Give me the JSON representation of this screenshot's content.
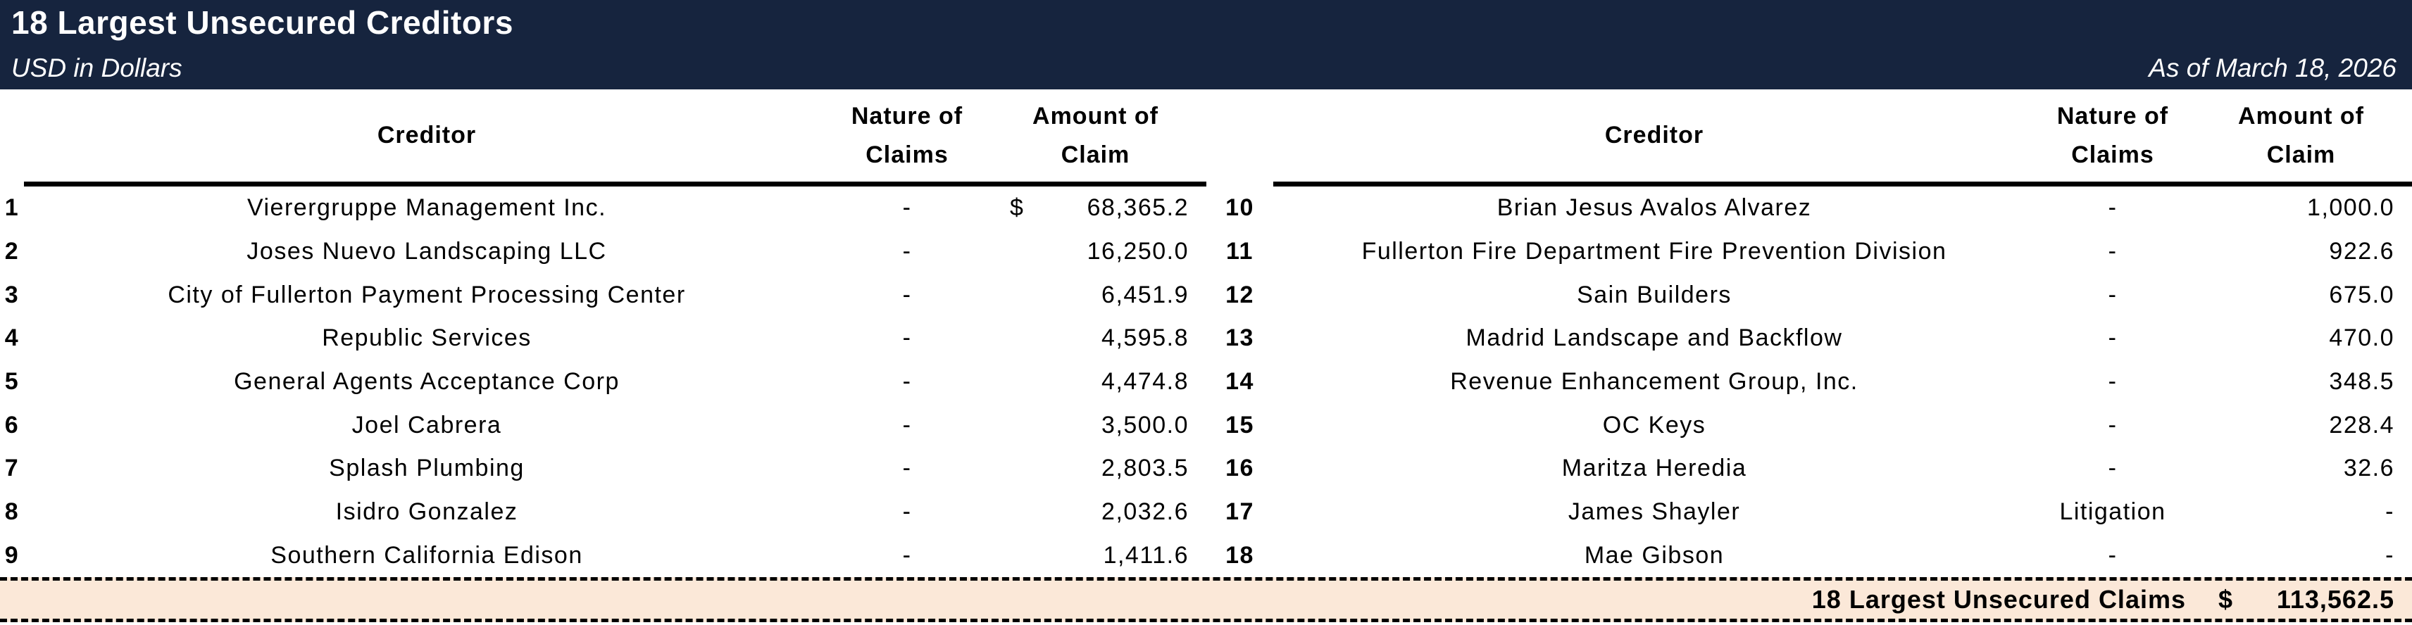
{
  "header": {
    "title": "18 Largest Unsecured Creditors",
    "subtitle": "USD in Dollars",
    "as_of": "As of March 18, 2026"
  },
  "columns": {
    "creditor": "Creditor",
    "nature": "Nature of Claims",
    "amount": "Amount of Claim"
  },
  "left_rows": [
    {
      "num": "1",
      "creditor": "Vierergruppe Management Inc.",
      "nature": "-",
      "currency": "$",
      "amount": "68,365.2"
    },
    {
      "num": "2",
      "creditor": "Joses Nuevo Landscaping LLC",
      "nature": "-",
      "currency": "",
      "amount": "16,250.0"
    },
    {
      "num": "3",
      "creditor": "City of Fullerton Payment Processing Center",
      "nature": "-",
      "currency": "",
      "amount": "6,451.9"
    },
    {
      "num": "4",
      "creditor": "Republic Services",
      "nature": "-",
      "currency": "",
      "amount": "4,595.8"
    },
    {
      "num": "5",
      "creditor": "General Agents Acceptance Corp",
      "nature": "-",
      "currency": "",
      "amount": "4,474.8"
    },
    {
      "num": "6",
      "creditor": "Joel Cabrera",
      "nature": "-",
      "currency": "",
      "amount": "3,500.0"
    },
    {
      "num": "7",
      "creditor": "Splash Plumbing",
      "nature": "-",
      "currency": "",
      "amount": "2,803.5"
    },
    {
      "num": "8",
      "creditor": "Isidro Gonzalez",
      "nature": "-",
      "currency": "",
      "amount": "2,032.6"
    },
    {
      "num": "9",
      "creditor": "Southern California Edison",
      "nature": "-",
      "currency": "",
      "amount": "1,411.6"
    }
  ],
  "right_rows": [
    {
      "num": "10",
      "creditor": "Brian Jesus Avalos Alvarez",
      "nature": "-",
      "currency": "",
      "amount": "1,000.0"
    },
    {
      "num": "11",
      "creditor": "Fullerton Fire Department Fire Prevention Division",
      "nature": "-",
      "currency": "",
      "amount": "922.6"
    },
    {
      "num": "12",
      "creditor": "Sain Builders",
      "nature": "-",
      "currency": "",
      "amount": "675.0"
    },
    {
      "num": "13",
      "creditor": "Madrid Landscape and Backflow",
      "nature": "-",
      "currency": "",
      "amount": "470.0"
    },
    {
      "num": "14",
      "creditor": "Revenue Enhancement Group, Inc.",
      "nature": "-",
      "currency": "",
      "amount": "348.5"
    },
    {
      "num": "15",
      "creditor": "OC Keys",
      "nature": "-",
      "currency": "",
      "amount": "228.4"
    },
    {
      "num": "16",
      "creditor": "Maritza Heredia",
      "nature": "-",
      "currency": "",
      "amount": "32.6"
    },
    {
      "num": "17",
      "creditor": "James Shayler",
      "nature": "Litigation",
      "currency": "",
      "amount": "-"
    },
    {
      "num": "18",
      "creditor": "Mae Gibson",
      "nature": "-",
      "currency": "",
      "amount": "-"
    }
  ],
  "total": {
    "label": "18 Largest Unsecured Claims",
    "currency": "$",
    "amount": "113,562.5"
  },
  "colors": {
    "header_bg": "#16243e",
    "total_bg": "#fbe8d8"
  }
}
